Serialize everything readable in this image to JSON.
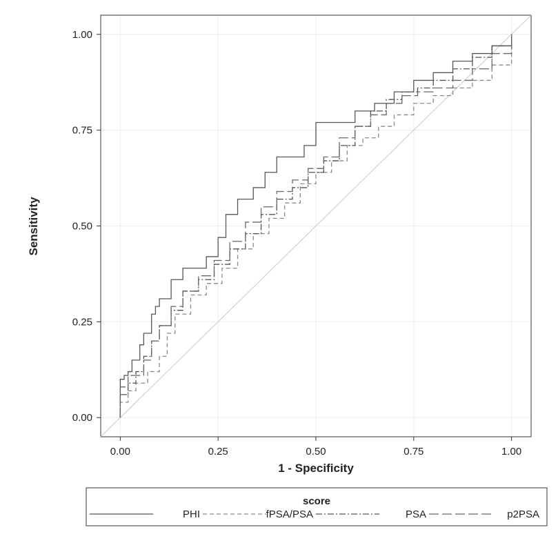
{
  "chart_data": {
    "type": "line",
    "title": "",
    "xlabel": "1 - Specificity",
    "ylabel": "Sensitivity",
    "xlim": [
      -0.05,
      1.05
    ],
    "ylim": [
      -0.05,
      1.05
    ],
    "x_ticks": [
      0,
      0.25,
      0.5,
      0.75,
      1
    ],
    "y_ticks": [
      0,
      0.25,
      0.5,
      0.75,
      1
    ],
    "x_tick_labels": [
      "0.00",
      "0.25",
      "0.50",
      "0.75",
      "1.00"
    ],
    "y_tick_labels": [
      "0.00",
      "0.25",
      "0.50",
      "0.75",
      "1.00"
    ],
    "grid": true,
    "legend_position": "bottom",
    "legend_title": "score",
    "reference_line": {
      "x": [
        0,
        1
      ],
      "y": [
        0,
        1
      ],
      "color": "#c8c8c8"
    },
    "series": [
      {
        "name": "PHI",
        "style": "solid",
        "color": "#555555",
        "x": [
          0,
          0,
          0.01,
          0.02,
          0.03,
          0.05,
          0.06,
          0.08,
          0.09,
          0.1,
          0.13,
          0.16,
          0.19,
          0.22,
          0.25,
          0.27,
          0.3,
          0.34,
          0.37,
          0.4,
          0.43,
          0.47,
          0.5,
          0.55,
          0.6,
          0.65,
          0.7,
          0.75,
          0.8,
          0.85,
          0.9,
          0.95,
          1.0
        ],
        "y": [
          0,
          0.1,
          0.11,
          0.12,
          0.15,
          0.19,
          0.22,
          0.27,
          0.29,
          0.31,
          0.36,
          0.39,
          0.39,
          0.42,
          0.47,
          0.53,
          0.57,
          0.6,
          0.64,
          0.68,
          0.68,
          0.71,
          0.77,
          0.77,
          0.8,
          0.82,
          0.85,
          0.88,
          0.9,
          0.93,
          0.95,
          0.97,
          1.0
        ]
      },
      {
        "name": "fPSA/PSA",
        "style": "dashed",
        "color": "#8a8a8a",
        "x": [
          0,
          0,
          0.02,
          0.04,
          0.07,
          0.1,
          0.12,
          0.14,
          0.18,
          0.22,
          0.26,
          0.3,
          0.34,
          0.38,
          0.42,
          0.46,
          0.5,
          0.54,
          0.58,
          0.62,
          0.66,
          0.7,
          0.75,
          0.8,
          0.85,
          0.9,
          0.95,
          1.0
        ],
        "y": [
          0,
          0.04,
          0.07,
          0.09,
          0.12,
          0.16,
          0.22,
          0.27,
          0.32,
          0.35,
          0.39,
          0.44,
          0.48,
          0.52,
          0.56,
          0.61,
          0.64,
          0.67,
          0.71,
          0.73,
          0.76,
          0.79,
          0.82,
          0.84,
          0.86,
          0.88,
          0.92,
          1.0
        ]
      },
      {
        "name": "PSA",
        "style": "dashdot",
        "color": "#505050",
        "x": [
          0,
          0,
          0.02,
          0.04,
          0.06,
          0.08,
          0.1,
          0.13,
          0.16,
          0.2,
          0.24,
          0.28,
          0.32,
          0.36,
          0.4,
          0.44,
          0.48,
          0.52,
          0.56,
          0.6,
          0.64,
          0.68,
          0.72,
          0.76,
          0.8,
          0.85,
          0.9,
          0.95,
          1.0
        ],
        "y": [
          0,
          0.06,
          0.09,
          0.12,
          0.16,
          0.2,
          0.24,
          0.28,
          0.33,
          0.36,
          0.4,
          0.44,
          0.48,
          0.53,
          0.57,
          0.6,
          0.64,
          0.67,
          0.71,
          0.76,
          0.8,
          0.83,
          0.85,
          0.86,
          0.88,
          0.91,
          0.94,
          0.97,
          1.0
        ]
      },
      {
        "name": "p2PSA",
        "style": "longdash",
        "color": "#666666",
        "x": [
          0,
          0,
          0.02,
          0.04,
          0.06,
          0.08,
          0.1,
          0.13,
          0.16,
          0.2,
          0.24,
          0.28,
          0.32,
          0.36,
          0.4,
          0.44,
          0.48,
          0.52,
          0.56,
          0.6,
          0.64,
          0.68,
          0.72,
          0.76,
          0.8,
          0.85,
          0.9,
          0.95,
          1.0
        ],
        "y": [
          0,
          0.08,
          0.11,
          0.11,
          0.15,
          0.2,
          0.24,
          0.29,
          0.33,
          0.37,
          0.41,
          0.46,
          0.51,
          0.55,
          0.59,
          0.62,
          0.65,
          0.68,
          0.73,
          0.76,
          0.79,
          0.82,
          0.84,
          0.85,
          0.86,
          0.88,
          0.91,
          0.95,
          1.0
        ]
      }
    ]
  }
}
